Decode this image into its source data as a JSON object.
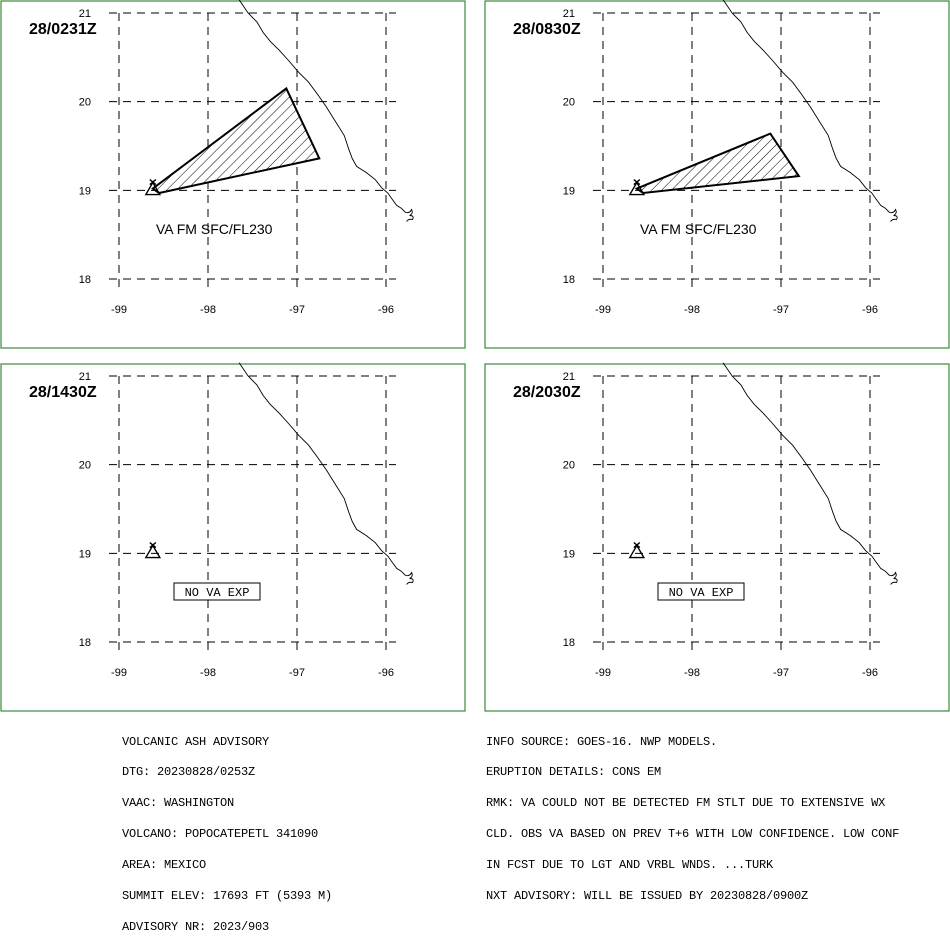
{
  "map_extent": {
    "lon_min": -99,
    "lon_max": -96,
    "lat_min": 18,
    "lat_max": 21
  },
  "lat_ticks": [
    "18",
    "19",
    "20",
    "21"
  ],
  "lon_ticks": [
    "-99",
    "-98",
    "-97",
    "-96"
  ],
  "volcano": {
    "name": "POPOCATEPETL",
    "lat": 19.02,
    "lon": -98.62
  },
  "coastline": [
    [
      -97.65,
      21.15
    ],
    [
      -97.55,
      21.0
    ],
    [
      -97.45,
      20.9
    ],
    [
      -97.38,
      20.78
    ],
    [
      -97.3,
      20.68
    ],
    [
      -97.2,
      20.58
    ],
    [
      -97.1,
      20.47
    ],
    [
      -96.98,
      20.33
    ],
    [
      -96.87,
      20.22
    ],
    [
      -96.76,
      20.07
    ],
    [
      -96.67,
      19.94
    ],
    [
      -96.57,
      19.78
    ],
    [
      -96.47,
      19.62
    ],
    [
      -96.42,
      19.47
    ],
    [
      -96.38,
      19.36
    ],
    [
      -96.33,
      19.27
    ],
    [
      -96.22,
      19.2
    ],
    [
      -96.12,
      19.12
    ],
    [
      -96.05,
      19.03
    ],
    [
      -95.98,
      18.97
    ],
    [
      -95.93,
      18.9
    ],
    [
      -95.88,
      18.83
    ],
    [
      -95.83,
      18.8
    ],
    [
      -95.78,
      18.75
    ]
  ],
  "panels": [
    {
      "time": "28/0231Z",
      "ash_polygon": [
        [
          -98.62,
          19.02
        ],
        [
          -97.12,
          20.15
        ],
        [
          -96.75,
          19.36
        ],
        [
          -98.55,
          18.97
        ]
      ],
      "label": "VA FM SFC/FL230",
      "no_va": false
    },
    {
      "time": "28/0830Z",
      "ash_polygon": [
        [
          -98.62,
          19.02
        ],
        [
          -97.12,
          19.64
        ],
        [
          -96.8,
          19.16
        ],
        [
          -98.55,
          18.97
        ]
      ],
      "label": "VA FM SFC/FL230",
      "no_va": false
    },
    {
      "time": "28/1430Z",
      "ash_polygon": [],
      "label": "NO VA EXP",
      "no_va": true
    },
    {
      "time": "28/2030Z",
      "ash_polygon": [],
      "label": "NO VA EXP",
      "no_va": true
    }
  ],
  "advisory_left": [
    "VOLCANIC ASH ADVISORY",
    "DTG: 20230828/0253Z",
    "VAAC: WASHINGTON",
    "VOLCANO: POPOCATEPETL 341090",
    "AREA: MEXICO",
    "SUMMIT ELEV: 17693 FT (5393 M)",
    "ADVISORY NR: 2023/903"
  ],
  "advisory_right": [
    "INFO SOURCE: GOES-16. NWP MODELS.",
    "ERUPTION DETAILS: CONS EM",
    "RMK: VA COULD NOT BE DETECTED FM STLT DUE TO EXTENSIVE WX",
    "CLD. OBS VA BASED ON PREV T+6 WITH LOW CONFIDENCE. LOW CONF",
    "IN FCST DUE TO LGT AND VRBL WNDS. ...TURK",
    "NXT ADVISORY: WILL BE ISSUED BY 20230828/0900Z"
  ],
  "colors": {
    "frame": "#3a8a3a",
    "ink": "#000000",
    "background": "#ffffff"
  }
}
